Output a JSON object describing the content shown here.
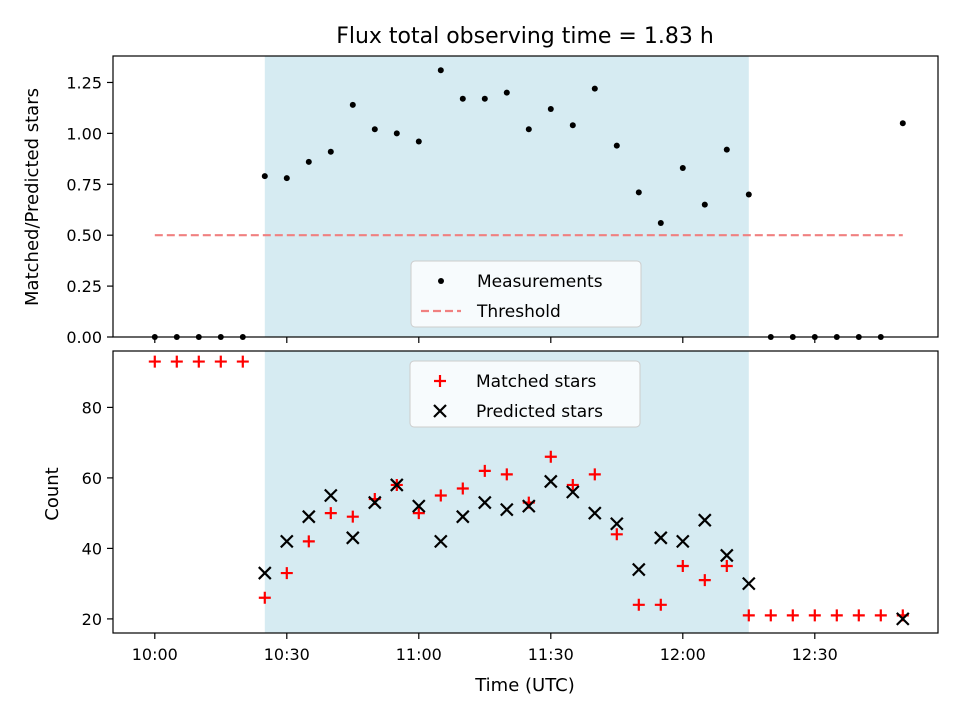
{
  "chart_data": {
    "title": "Flux total observing time = 1.83 h",
    "xlabel": "Time (UTC)",
    "x_ticks": [
      "10:00",
      "10:30",
      "11:00",
      "11:30",
      "12:00",
      "12:30"
    ],
    "x_tick_minutes": [
      0,
      30,
      60,
      90,
      120,
      150
    ],
    "x_range_minutes": [
      -9.5,
      178
    ],
    "shaded_interval_minutes": [
      25,
      135
    ],
    "colors": {
      "shade": "#add8e6",
      "threshold": "#f08080",
      "matched": "#ff0000",
      "predicted": "#000000",
      "measurement": "#000000"
    },
    "panels": [
      {
        "type": "scatter",
        "ylabel": "Matched/Predicted stars",
        "ylim": [
          0,
          1.38
        ],
        "y_ticks": [
          "0.00",
          "0.25",
          "0.50",
          "0.75",
          "1.00",
          "1.25"
        ],
        "y_tick_values": [
          0,
          0.25,
          0.5,
          0.75,
          1.0,
          1.25
        ],
        "threshold": {
          "label": "Threshold",
          "value": 0.5,
          "x_range_minutes": [
            0,
            170
          ]
        },
        "series": [
          {
            "name": "Measurements",
            "x_minutes": [
              0,
              5,
              10,
              15,
              20,
              25,
              30,
              35,
              40,
              45,
              50,
              55,
              60,
              65,
              70,
              75,
              80,
              85,
              90,
              95,
              100,
              105,
              110,
              115,
              120,
              125,
              130,
              135,
              140,
              145,
              150,
              155,
              160,
              165,
              170
            ],
            "values": [
              0,
              0,
              0,
              0,
              0,
              0.79,
              0.78,
              0.86,
              0.91,
              1.14,
              1.02,
              1.0,
              0.96,
              1.31,
              1.17,
              1.17,
              1.2,
              1.02,
              1.12,
              1.04,
              1.22,
              0.94,
              0.71,
              0.56,
              0.83,
              0.65,
              0.92,
              0.7,
              0,
              0,
              0,
              0,
              0,
              0,
              1.05
            ]
          }
        ],
        "legend": [
          "Measurements",
          "Threshold"
        ],
        "legend_position": "lower-center"
      },
      {
        "type": "scatter",
        "ylabel": "Count",
        "ylim": [
          16,
          96
        ],
        "y_ticks": [
          "20",
          "40",
          "60",
          "80"
        ],
        "y_tick_values": [
          20,
          40,
          60,
          80
        ],
        "series": [
          {
            "name": "Matched stars",
            "x_minutes": [
              0,
              5,
              10,
              15,
              20,
              25,
              30,
              35,
              40,
              45,
              50,
              55,
              60,
              65,
              70,
              75,
              80,
              85,
              90,
              95,
              100,
              105,
              110,
              115,
              120,
              125,
              130,
              135,
              140,
              145,
              150,
              155,
              160,
              165,
              170
            ],
            "values": [
              93,
              93,
              93,
              93,
              93,
              26,
              33,
              42,
              50,
              49,
              54,
              58,
              50,
              55,
              57,
              62,
              61,
              53,
              66,
              58,
              61,
              44,
              24,
              24,
              35,
              31,
              35,
              21,
              21,
              21,
              21,
              21,
              21,
              21,
              21
            ]
          },
          {
            "name": "Predicted stars",
            "x_minutes": [
              25,
              30,
              35,
              40,
              45,
              50,
              55,
              60,
              65,
              70,
              75,
              80,
              85,
              90,
              95,
              100,
              105,
              110,
              115,
              120,
              125,
              130,
              135,
              170
            ],
            "values": [
              33,
              42,
              49,
              55,
              43,
              53,
              58,
              52,
              42,
              49,
              53,
              51,
              52,
              59,
              56,
              50,
              47,
              34,
              43,
              42,
              48,
              38,
              30,
              20
            ]
          }
        ],
        "legend": [
          "Matched stars",
          "Predicted stars"
        ],
        "legend_position": "upper-center"
      }
    ]
  }
}
